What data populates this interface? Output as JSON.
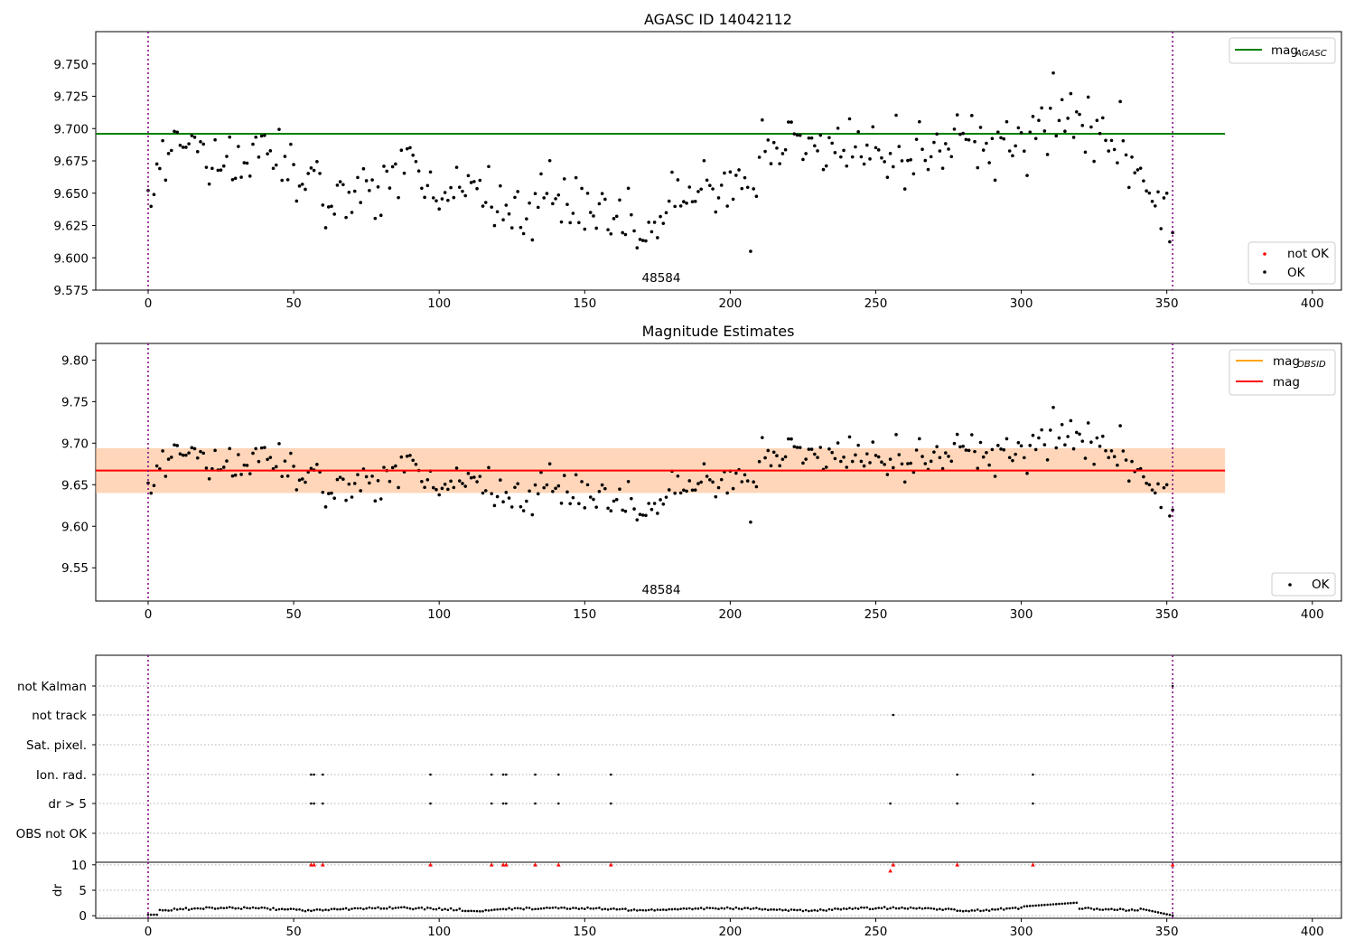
{
  "figure": {
    "panel1_title": "AGASC ID 14042112",
    "panel2_title": "Magnitude Estimates",
    "obsid_label": "48584"
  },
  "chart_data": [
    {
      "type": "scatter",
      "title": "AGASC ID 14042112",
      "xlim": [
        -18,
        410
      ],
      "ylim": [
        9.575,
        9.775
      ],
      "xticks": [
        0,
        50,
        100,
        150,
        200,
        250,
        300,
        350,
        400
      ],
      "yticks": [
        9.575,
        9.6,
        9.625,
        9.65,
        9.675,
        9.7,
        9.725,
        9.75
      ],
      "ytick_labels": [
        "9.575",
        "9.600",
        "9.625",
        "9.650",
        "9.675",
        "9.700",
        "9.725",
        "9.750"
      ],
      "mag_agasc": 9.696,
      "hline_xrange": [
        -18,
        370
      ],
      "vlines": [
        0,
        352
      ],
      "annotation": "48584",
      "legend_top": [
        {
          "label": "mag",
          "sub": "AGASC",
          "color": "#008000"
        }
      ],
      "legend_bottom": [
        {
          "label": "not OK",
          "color": "#ff0000"
        },
        {
          "label": "OK",
          "color": "#000000"
        }
      ],
      "series_knots": {
        "x": [
          0,
          10,
          20,
          30,
          40,
          50,
          60,
          70,
          80,
          90,
          100,
          110,
          120,
          130,
          140,
          150,
          160,
          170,
          180,
          190,
          200,
          210,
          220,
          230,
          240,
          250,
          260,
          270,
          280,
          290,
          300,
          310,
          320,
          330,
          335,
          340,
          345,
          352
        ],
        "y": [
          9.657,
          9.684,
          9.675,
          9.675,
          9.678,
          9.664,
          9.655,
          9.652,
          9.655,
          9.672,
          9.652,
          9.656,
          9.633,
          9.638,
          9.65,
          9.638,
          9.627,
          9.625,
          9.632,
          9.658,
          9.653,
          9.677,
          9.69,
          9.683,
          9.677,
          9.678,
          9.682,
          9.684,
          9.692,
          9.685,
          9.694,
          9.705,
          9.708,
          9.695,
          9.688,
          9.668,
          9.648,
          9.625
        ]
      },
      "n_points": 353,
      "noise_std": 0.012
    },
    {
      "type": "scatter",
      "title": "Magnitude Estimates",
      "xlim": [
        -18,
        410
      ],
      "ylim": [
        9.51,
        9.82
      ],
      "xticks": [
        0,
        50,
        100,
        150,
        200,
        250,
        300,
        350,
        400
      ],
      "yticks": [
        9.55,
        9.6,
        9.65,
        9.7,
        9.75,
        9.8
      ],
      "ytick_labels": [
        "9.55",
        "9.60",
        "9.65",
        "9.70",
        "9.75",
        "9.80"
      ],
      "mag": 9.667,
      "mag_obsid": 9.667,
      "band_low": 9.64,
      "band_high": 9.694,
      "annotation": "48584",
      "legend_top": [
        {
          "label": "mag",
          "sub": "OBSID",
          "color": "#ffa500"
        },
        {
          "label": "mag",
          "sub": "",
          "color": "#ff0000"
        }
      ],
      "legend_bottom": [
        {
          "label": "OK",
          "color": "#000000"
        }
      ]
    },
    {
      "type": "scatter",
      "title": "",
      "xlim": [
        -18,
        410
      ],
      "xticks": [
        0,
        50,
        100,
        150,
        200,
        250,
        300,
        350,
        400
      ],
      "flag_rows": [
        "not Kalman",
        "not track",
        "Sat. pixel.",
        "Ion. rad.",
        "dr > 5",
        "OBS not OK"
      ],
      "flags": {
        "not Kalman": [
          352
        ],
        "not track": [
          256
        ],
        "Sat. pixel.": [],
        "Ion. rad.": [
          56,
          57,
          60,
          97,
          118,
          122,
          123,
          133,
          141,
          159,
          278,
          304
        ],
        "dr > 5": [
          56,
          57,
          60,
          97,
          118,
          122,
          123,
          133,
          141,
          159,
          255,
          278,
          304
        ],
        "OBS not OK": []
      },
      "dr_ylabel": "dr",
      "dr_yticks": [
        0,
        5,
        10
      ],
      "dr_ylim": [
        -0.5,
        10.5
      ],
      "dr_high_points": [
        56,
        57,
        60,
        97,
        118,
        122,
        123,
        133,
        141,
        159,
        256,
        278,
        304,
        352
      ],
      "dr_extra_point": {
        "x": 255,
        "y": 8.8
      }
    }
  ]
}
